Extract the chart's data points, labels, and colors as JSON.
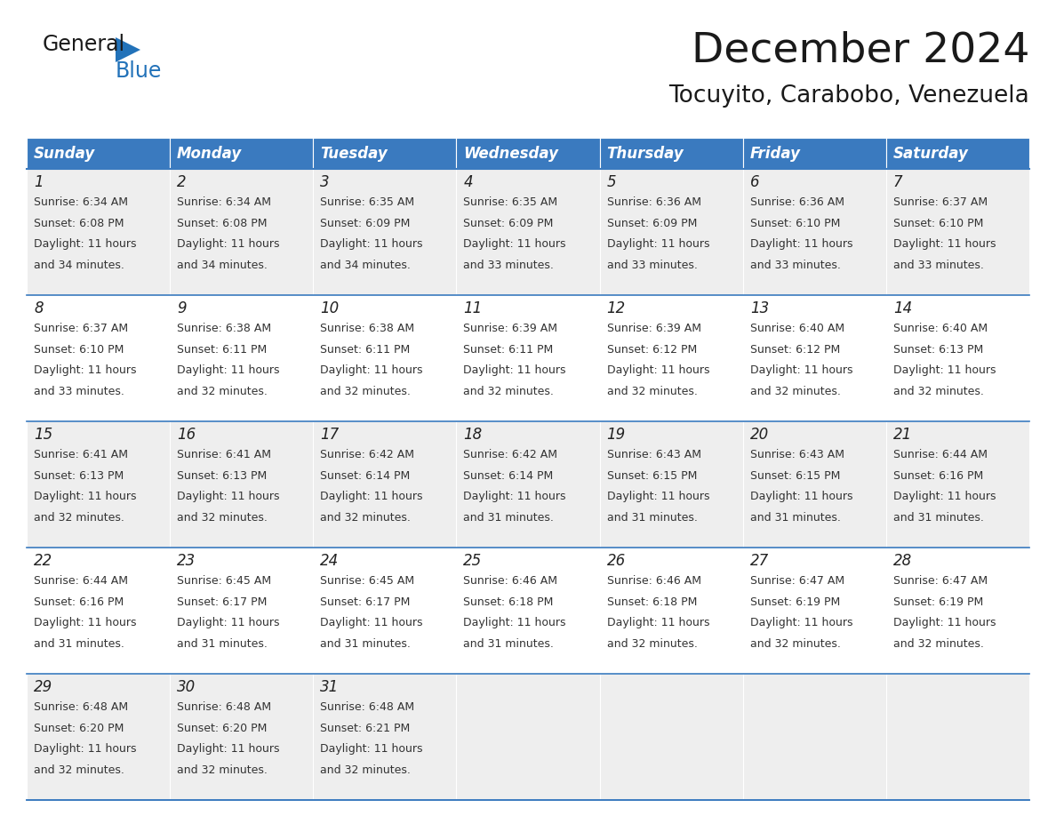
{
  "title": "December 2024",
  "subtitle": "Tocuyito, Carabobo, Venezuela",
  "header_color": "#3a7abf",
  "header_text_color": "#ffffff",
  "row_bg_even": "#eeeeee",
  "row_bg_odd": "#ffffff",
  "border_color": "#3a7abf",
  "text_color_dark": "#222222",
  "text_color_body": "#333333",
  "day_headers": [
    "Sunday",
    "Monday",
    "Tuesday",
    "Wednesday",
    "Thursday",
    "Friday",
    "Saturday"
  ],
  "days": [
    {
      "day": 1,
      "col": 0,
      "row": 0,
      "sunrise": "6:34 AM",
      "sunset": "6:08 PM",
      "daylight": "11 hours",
      "daylight2": "and 34 minutes."
    },
    {
      "day": 2,
      "col": 1,
      "row": 0,
      "sunrise": "6:34 AM",
      "sunset": "6:08 PM",
      "daylight": "11 hours",
      "daylight2": "and 34 minutes."
    },
    {
      "day": 3,
      "col": 2,
      "row": 0,
      "sunrise": "6:35 AM",
      "sunset": "6:09 PM",
      "daylight": "11 hours",
      "daylight2": "and 34 minutes."
    },
    {
      "day": 4,
      "col": 3,
      "row": 0,
      "sunrise": "6:35 AM",
      "sunset": "6:09 PM",
      "daylight": "11 hours",
      "daylight2": "and 33 minutes."
    },
    {
      "day": 5,
      "col": 4,
      "row": 0,
      "sunrise": "6:36 AM",
      "sunset": "6:09 PM",
      "daylight": "11 hours",
      "daylight2": "and 33 minutes."
    },
    {
      "day": 6,
      "col": 5,
      "row": 0,
      "sunrise": "6:36 AM",
      "sunset": "6:10 PM",
      "daylight": "11 hours",
      "daylight2": "and 33 minutes."
    },
    {
      "day": 7,
      "col": 6,
      "row": 0,
      "sunrise": "6:37 AM",
      "sunset": "6:10 PM",
      "daylight": "11 hours",
      "daylight2": "and 33 minutes."
    },
    {
      "day": 8,
      "col": 0,
      "row": 1,
      "sunrise": "6:37 AM",
      "sunset": "6:10 PM",
      "daylight": "11 hours",
      "daylight2": "and 33 minutes."
    },
    {
      "day": 9,
      "col": 1,
      "row": 1,
      "sunrise": "6:38 AM",
      "sunset": "6:11 PM",
      "daylight": "11 hours",
      "daylight2": "and 32 minutes."
    },
    {
      "day": 10,
      "col": 2,
      "row": 1,
      "sunrise": "6:38 AM",
      "sunset": "6:11 PM",
      "daylight": "11 hours",
      "daylight2": "and 32 minutes."
    },
    {
      "day": 11,
      "col": 3,
      "row": 1,
      "sunrise": "6:39 AM",
      "sunset": "6:11 PM",
      "daylight": "11 hours",
      "daylight2": "and 32 minutes."
    },
    {
      "day": 12,
      "col": 4,
      "row": 1,
      "sunrise": "6:39 AM",
      "sunset": "6:12 PM",
      "daylight": "11 hours",
      "daylight2": "and 32 minutes."
    },
    {
      "day": 13,
      "col": 5,
      "row": 1,
      "sunrise": "6:40 AM",
      "sunset": "6:12 PM",
      "daylight": "11 hours",
      "daylight2": "and 32 minutes."
    },
    {
      "day": 14,
      "col": 6,
      "row": 1,
      "sunrise": "6:40 AM",
      "sunset": "6:13 PM",
      "daylight": "11 hours",
      "daylight2": "and 32 minutes."
    },
    {
      "day": 15,
      "col": 0,
      "row": 2,
      "sunrise": "6:41 AM",
      "sunset": "6:13 PM",
      "daylight": "11 hours",
      "daylight2": "and 32 minutes."
    },
    {
      "day": 16,
      "col": 1,
      "row": 2,
      "sunrise": "6:41 AM",
      "sunset": "6:13 PM",
      "daylight": "11 hours",
      "daylight2": "and 32 minutes."
    },
    {
      "day": 17,
      "col": 2,
      "row": 2,
      "sunrise": "6:42 AM",
      "sunset": "6:14 PM",
      "daylight": "11 hours",
      "daylight2": "and 32 minutes."
    },
    {
      "day": 18,
      "col": 3,
      "row": 2,
      "sunrise": "6:42 AM",
      "sunset": "6:14 PM",
      "daylight": "11 hours",
      "daylight2": "and 31 minutes."
    },
    {
      "day": 19,
      "col": 4,
      "row": 2,
      "sunrise": "6:43 AM",
      "sunset": "6:15 PM",
      "daylight": "11 hours",
      "daylight2": "and 31 minutes."
    },
    {
      "day": 20,
      "col": 5,
      "row": 2,
      "sunrise": "6:43 AM",
      "sunset": "6:15 PM",
      "daylight": "11 hours",
      "daylight2": "and 31 minutes."
    },
    {
      "day": 21,
      "col": 6,
      "row": 2,
      "sunrise": "6:44 AM",
      "sunset": "6:16 PM",
      "daylight": "11 hours",
      "daylight2": "and 31 minutes."
    },
    {
      "day": 22,
      "col": 0,
      "row": 3,
      "sunrise": "6:44 AM",
      "sunset": "6:16 PM",
      "daylight": "11 hours",
      "daylight2": "and 31 minutes."
    },
    {
      "day": 23,
      "col": 1,
      "row": 3,
      "sunrise": "6:45 AM",
      "sunset": "6:17 PM",
      "daylight": "11 hours",
      "daylight2": "and 31 minutes."
    },
    {
      "day": 24,
      "col": 2,
      "row": 3,
      "sunrise": "6:45 AM",
      "sunset": "6:17 PM",
      "daylight": "11 hours",
      "daylight2": "and 31 minutes."
    },
    {
      "day": 25,
      "col": 3,
      "row": 3,
      "sunrise": "6:46 AM",
      "sunset": "6:18 PM",
      "daylight": "11 hours",
      "daylight2": "and 31 minutes."
    },
    {
      "day": 26,
      "col": 4,
      "row": 3,
      "sunrise": "6:46 AM",
      "sunset": "6:18 PM",
      "daylight": "11 hours",
      "daylight2": "and 32 minutes."
    },
    {
      "day": 27,
      "col": 5,
      "row": 3,
      "sunrise": "6:47 AM",
      "sunset": "6:19 PM",
      "daylight": "11 hours",
      "daylight2": "and 32 minutes."
    },
    {
      "day": 28,
      "col": 6,
      "row": 3,
      "sunrise": "6:47 AM",
      "sunset": "6:19 PM",
      "daylight": "11 hours",
      "daylight2": "and 32 minutes."
    },
    {
      "day": 29,
      "col": 0,
      "row": 4,
      "sunrise": "6:48 AM",
      "sunset": "6:20 PM",
      "daylight": "11 hours",
      "daylight2": "and 32 minutes."
    },
    {
      "day": 30,
      "col": 1,
      "row": 4,
      "sunrise": "6:48 AM",
      "sunset": "6:20 PM",
      "daylight": "11 hours",
      "daylight2": "and 32 minutes."
    },
    {
      "day": 31,
      "col": 2,
      "row": 4,
      "sunrise": "6:48 AM",
      "sunset": "6:21 PM",
      "daylight": "11 hours",
      "daylight2": "and 32 minutes."
    }
  ],
  "num_rows": 5,
  "logo_general_color": "#1a1a1a",
  "logo_blue_color": "#2272b9",
  "logo_triangle_color": "#2272b9"
}
